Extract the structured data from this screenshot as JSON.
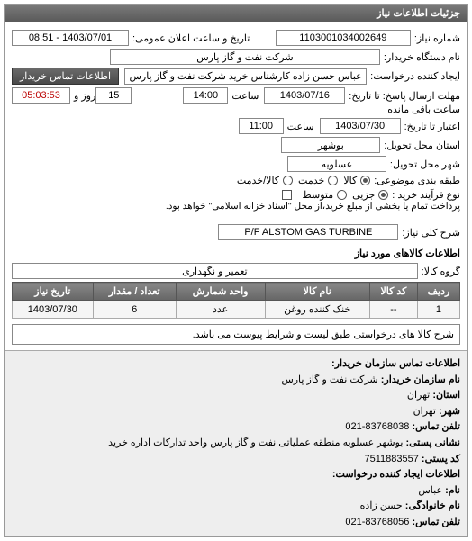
{
  "panel": {
    "title": "جزئیات اطلاعات نیاز"
  },
  "header": {
    "req_no_lbl": "شماره نیاز:",
    "req_no": "1103001034002649",
    "announce_lbl": "تاریخ و ساعت اعلان عمومی:",
    "announce": "1403/07/01 - 08:51",
    "buyer_lbl": "نام دستگاه خریدار:",
    "buyer": "شرکت نفت و گاز پارس",
    "creator_lbl": "ایجاد کننده درخواست:",
    "creator": "عباس حسن زاده کارشناس خرید شرکت نفت و گاز پارس",
    "contact_btn": "اطلاعات تماس خریدار",
    "deadline_reply_lbl": "مهلت ارسال پاسخ: تا تاریخ:",
    "deadline_reply_date": "1403/07/16",
    "time_lbl": "ساعت",
    "deadline_reply_time": "14:00",
    "days_lbl": "روز و",
    "days": "15",
    "remain_time": "05:03:53",
    "remain_lbl": "ساعت باقی مانده",
    "validity_lbl": "اعتبار تا تاریخ:",
    "validity_date": "1403/07/30",
    "validity_time": "11:00",
    "delivery_province_lbl": "استان محل تحویل:",
    "delivery_province": "بوشهر",
    "delivery_city_lbl": "شهر محل تحویل:",
    "delivery_city": "عسلویه",
    "subject_cat_lbl": "طبقه بندی موضوعی:",
    "subject_opts": [
      "کالا",
      "خدمت",
      "کالا/خدمت"
    ],
    "subject_sel": 0,
    "process_lbl": "نوع فرآیند خرید :",
    "process_opts": [
      "جزیی",
      "متوسط"
    ],
    "process_sel": 0,
    "process_note": "پرداخت تمام یا بخشی از مبلغ خرید،از محل \"اسناد خزانه اسلامی\" خواهد بود.",
    "need_desc_lbl": "شرح کلی نیاز:",
    "need_desc": "P/F ALSTOM GAS TURBINE"
  },
  "items": {
    "title": "اطلاعات کالاهای مورد نیاز",
    "group_lbl": "گروه کالا:",
    "group": "تعمیر و نگهداری",
    "cols": [
      "ردیف",
      "کد کالا",
      "نام کالا",
      "واحد شمارش",
      "تعداد / مقدار",
      "تاریخ نیاز"
    ],
    "rows": [
      [
        "1",
        "--",
        "خنک کننده روغن",
        "عدد",
        "6",
        "1403/07/30"
      ]
    ],
    "note": "شرح کالا های درخواستی طبق لیست و شرایط پیوست می باشد."
  },
  "contact": {
    "title": "اطلاعات تماس سازمان خریدار:",
    "org_lbl": "نام سازمان خریدار:",
    "org": "شرکت نفت و گاز پارس",
    "province_lbl": "استان:",
    "province": "تهران",
    "city_lbl": "شهر:",
    "city": "تهران",
    "tel_lbl": "تلفن تماس:",
    "tel": "021-83768038",
    "post_addr_lbl": "نشانی پستی:",
    "post_addr": "بوشهر عسلویه منطقه عملیاتی نفت و گاز پارس واحد تدارکات اداره خرید",
    "post_code_lbl": "کد پستی:",
    "post_code": "7511883557",
    "creator_title": "اطلاعات ایجاد کننده درخواست:",
    "fname_lbl": "نام:",
    "fname": "عباس",
    "lname_lbl": "نام خانوادگی:",
    "lname": "حسن زاده",
    "creator_tel_lbl": "تلفن تماس:",
    "creator_tel": "021-83768056"
  }
}
